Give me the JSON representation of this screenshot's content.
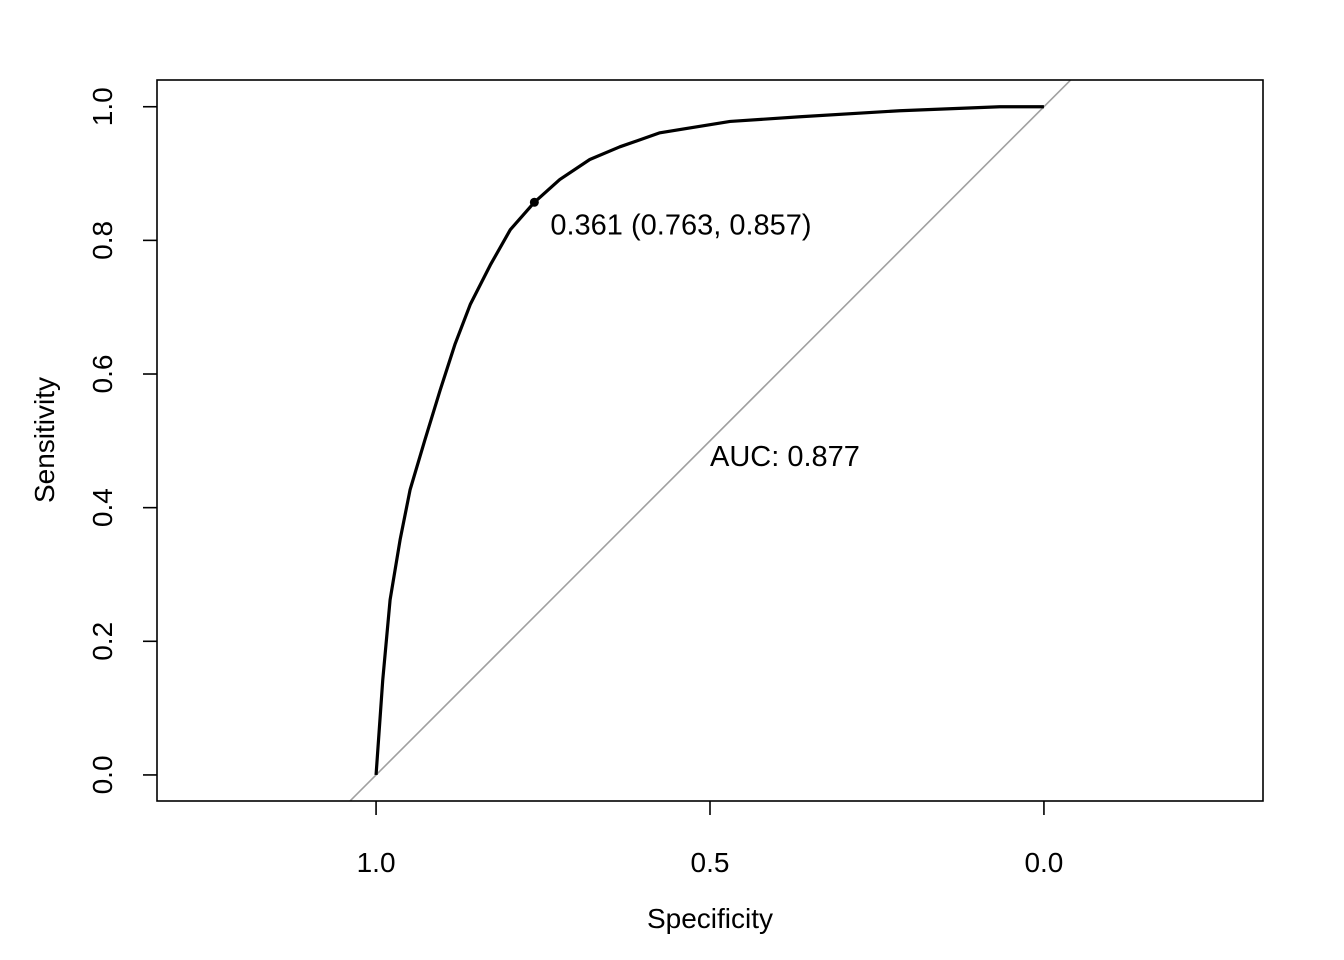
{
  "chart_data": {
    "type": "line",
    "title": "",
    "xlabel": "Specificity",
    "ylabel": "Sensitivity",
    "xlim": [
      1.328,
      -0.328
    ],
    "ylim": [
      -0.039,
      1.04
    ],
    "x_reversed": true,
    "grid": false,
    "xticks": [
      1.0,
      0.5,
      0.0
    ],
    "xtick_labels": [
      "1.0",
      "0.5",
      "0.0"
    ],
    "yticks": [
      0.0,
      0.2,
      0.4,
      0.6,
      0.8,
      1.0
    ],
    "ytick_labels": [
      "0.0",
      "0.2",
      "0.4",
      "0.6",
      "0.8",
      "1.0"
    ],
    "series": [
      {
        "color": "#000000",
        "points": [
          [
            1.0,
            0.0
          ],
          [
            0.99,
            0.142
          ],
          [
            0.979,
            0.262
          ],
          [
            0.964,
            0.352
          ],
          [
            0.949,
            0.427
          ],
          [
            0.927,
            0.501
          ],
          [
            0.904,
            0.576
          ],
          [
            0.882,
            0.644
          ],
          [
            0.859,
            0.704
          ],
          [
            0.829,
            0.763
          ],
          [
            0.799,
            0.816
          ],
          [
            0.763,
            0.857
          ],
          [
            0.725,
            0.891
          ],
          [
            0.68,
            0.921
          ],
          [
            0.635,
            0.94
          ],
          [
            0.575,
            0.961
          ],
          [
            0.47,
            0.978
          ],
          [
            0.365,
            0.985
          ],
          [
            0.216,
            0.994
          ],
          [
            0.066,
            1.0
          ],
          [
            0.0,
            1.0
          ]
        ]
      }
    ],
    "reference_line": {
      "from": [
        1,
        0
      ],
      "to": [
        0,
        1
      ],
      "color": "#a0a0a0"
    },
    "threshold_point": {
      "spec": 0.763,
      "sens": 0.857,
      "label": "0.361 (0.763, 0.857)"
    },
    "auc_label": "AUC: 0.877",
    "auc_label_position": [
      0.5,
      0.48
    ]
  }
}
